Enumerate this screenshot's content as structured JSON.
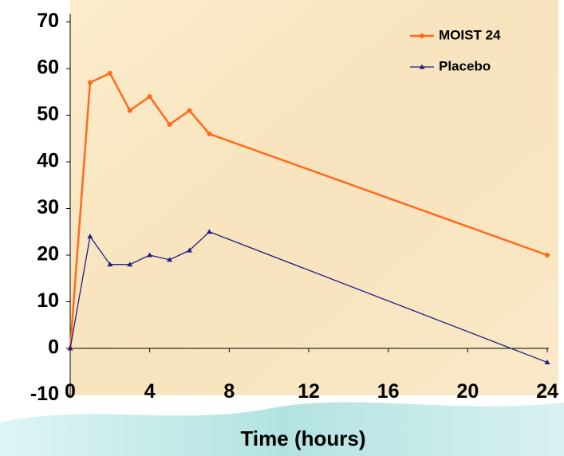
{
  "chart_data": {
    "type": "line",
    "x": [
      0,
      1,
      2,
      3,
      4,
      5,
      6,
      7,
      24
    ],
    "series": [
      {
        "name": "MOIST 24",
        "color": "#ff6a1a",
        "values": [
          0,
          57,
          59,
          51,
          54,
          48,
          51,
          46,
          20
        ]
      },
      {
        "name": "Placebo",
        "color": "#1f1f80",
        "values": [
          0,
          24,
          18,
          18,
          20,
          19,
          21,
          25,
          -3
        ]
      }
    ],
    "x_label": "Time (hours)",
    "xlim": [
      0,
      24
    ],
    "xticks": [
      0,
      4,
      8,
      12,
      16,
      20,
      24
    ],
    "ylim": [
      -10,
      70
    ],
    "yticks": [
      -10,
      0,
      10,
      20,
      30,
      40,
      50,
      60,
      70
    ],
    "legend": "upper right"
  }
}
